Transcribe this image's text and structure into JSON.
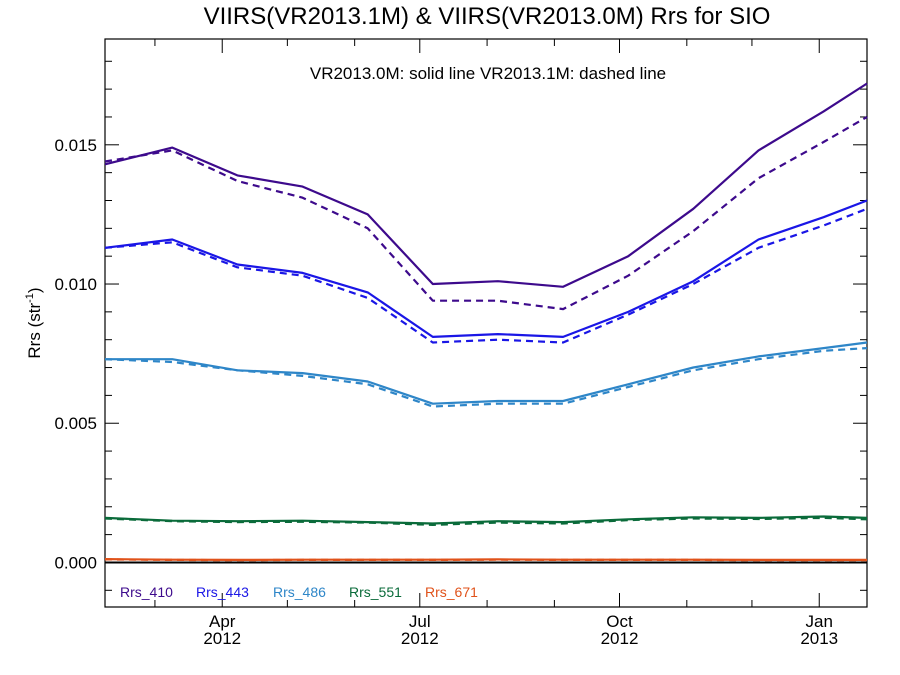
{
  "chart_data": {
    "type": "line",
    "title": "VIIRS(VR2013.1M) & VIIRS(VR2013.0M)  Rrs for SIO",
    "annotation": "VR2013.0M: solid line   VR2013.1M: dashed line",
    "ylabel": "Rrs (str",
    "ylabel_exponent": "-1",
    "ylabel_close": ")",
    "ylim": [
      -0.0016,
      0.0188
    ],
    "xlim": [
      "2012-02-07",
      "2013-01-23"
    ],
    "y_ticks": [
      {
        "value": 0.0,
        "label": "0.000"
      },
      {
        "value": 0.005,
        "label": "0.005"
      },
      {
        "value": 0.01,
        "label": "0.010"
      },
      {
        "value": 0.015,
        "label": "0.015"
      }
    ],
    "x_ticks": [
      {
        "date": "2012-04-01",
        "month": "Apr",
        "year": "2012"
      },
      {
        "date": "2012-07-01",
        "month": "Jul",
        "year": "2012"
      },
      {
        "date": "2012-10-01",
        "month": "Oct",
        "year": "2012"
      },
      {
        "date": "2013-01-01",
        "month": "Jan",
        "year": "2013"
      }
    ],
    "x": [
      "2012-02-07",
      "2012-03-09",
      "2012-04-08",
      "2012-05-08",
      "2012-06-07",
      "2012-07-07",
      "2012-08-06",
      "2012-09-05",
      "2012-10-05",
      "2012-11-04",
      "2012-12-04",
      "2013-01-03",
      "2013-01-23"
    ],
    "series": [
      {
        "name": "Rrs_410",
        "color": "#3d0a8c",
        "solid": [
          0.0143,
          0.0149,
          0.0139,
          0.0135,
          0.0125,
          0.01,
          0.0101,
          0.0099,
          0.011,
          0.0127,
          0.0148,
          0.0162,
          0.0172
        ],
        "dashed": [
          0.0144,
          0.0148,
          0.0137,
          0.0131,
          0.012,
          0.0094,
          0.0094,
          0.0091,
          0.0103,
          0.0119,
          0.0138,
          0.0151,
          0.016
        ]
      },
      {
        "name": "Rrs_443",
        "color": "#1a16e6",
        "solid": [
          0.0113,
          0.0116,
          0.0107,
          0.0104,
          0.0097,
          0.0081,
          0.0082,
          0.0081,
          0.009,
          0.0101,
          0.0116,
          0.0124,
          0.013
        ],
        "dashed": [
          0.0113,
          0.0115,
          0.0106,
          0.0103,
          0.0095,
          0.0079,
          0.008,
          0.0079,
          0.0089,
          0.01,
          0.0113,
          0.0121,
          0.0127
        ]
      },
      {
        "name": "Rrs_486",
        "color": "#2e86c8",
        "solid": [
          0.0073,
          0.0073,
          0.0069,
          0.0068,
          0.0065,
          0.0057,
          0.0058,
          0.0058,
          0.0064,
          0.007,
          0.0074,
          0.0077,
          0.0079
        ],
        "dashed": [
          0.0073,
          0.0072,
          0.0069,
          0.0067,
          0.0064,
          0.0056,
          0.0057,
          0.0057,
          0.0063,
          0.0069,
          0.0073,
          0.0076,
          0.0077
        ]
      },
      {
        "name": "Rrs_551",
        "color": "#0a6b3a",
        "solid": [
          0.0016,
          0.0015,
          0.00148,
          0.0015,
          0.00145,
          0.0014,
          0.00148,
          0.00145,
          0.00155,
          0.00162,
          0.0016,
          0.00165,
          0.0016
        ],
        "dashed": [
          0.00158,
          0.00148,
          0.00145,
          0.00146,
          0.00143,
          0.00135,
          0.00143,
          0.0014,
          0.00152,
          0.00158,
          0.00156,
          0.0016,
          0.00155
        ]
      },
      {
        "name": "Rrs_671",
        "color": "#e0521a",
        "solid": [
          0.00012,
          0.0001,
          9e-05,
          0.0001,
          0.0001,
          0.0001,
          0.00011,
          0.0001,
          0.0001,
          0.0001,
          9e-05,
          9e-05,
          9e-05
        ],
        "dashed": [
          0.00011,
          9e-05,
          8e-05,
          9e-05,
          9e-05,
          9e-05,
          0.0001,
          9e-05,
          9e-05,
          9e-05,
          8e-05,
          8e-05,
          8e-05
        ]
      }
    ],
    "zero_line": true,
    "grid": false,
    "legend": "bottom-left"
  }
}
